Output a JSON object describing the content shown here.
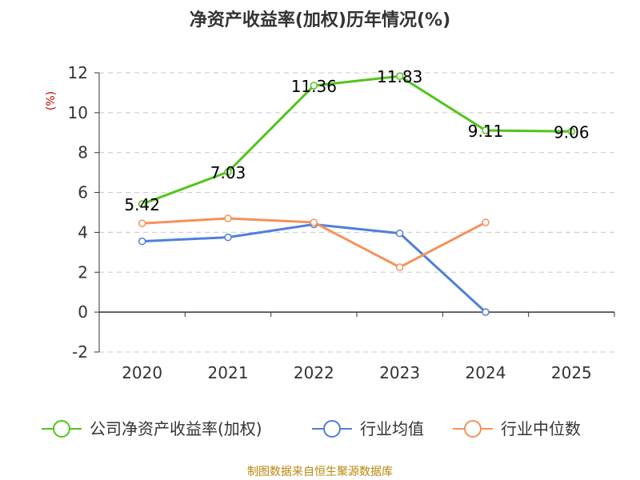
{
  "chart_data": {
    "type": "line",
    "title": "净资产收益率(加权)历年情况(%)",
    "ylabel": "(%)",
    "categories": [
      "2020",
      "2021",
      "2022",
      "2023",
      "2024",
      "2025"
    ],
    "ylim": [
      -2,
      12
    ],
    "yticks": [
      "12",
      "10",
      "8",
      "6",
      "4",
      "2",
      "0",
      "-2"
    ],
    "ytick_values": [
      12,
      10,
      8,
      6,
      4,
      2,
      0,
      -2
    ],
    "grid": true,
    "legend_position": "bottom",
    "series": [
      {
        "name": "公司净资产收益率(加权)",
        "color": "#52c41a",
        "values": [
          5.42,
          7.03,
          11.36,
          11.83,
          9.11,
          9.06
        ],
        "labels": [
          "5.42",
          "7.03",
          "11.36",
          "11.83",
          "9.11",
          "9.06"
        ]
      },
      {
        "name": "行业均值",
        "color": "#4f7fdb",
        "values": [
          3.55,
          3.75,
          4.4,
          3.95,
          0.0,
          null
        ]
      },
      {
        "name": "行业中位数",
        "color": "#f4915c",
        "values": [
          4.45,
          4.7,
          4.5,
          2.25,
          4.5,
          null
        ]
      }
    ]
  },
  "source_text": "制图数据来自恒生聚源数据库"
}
